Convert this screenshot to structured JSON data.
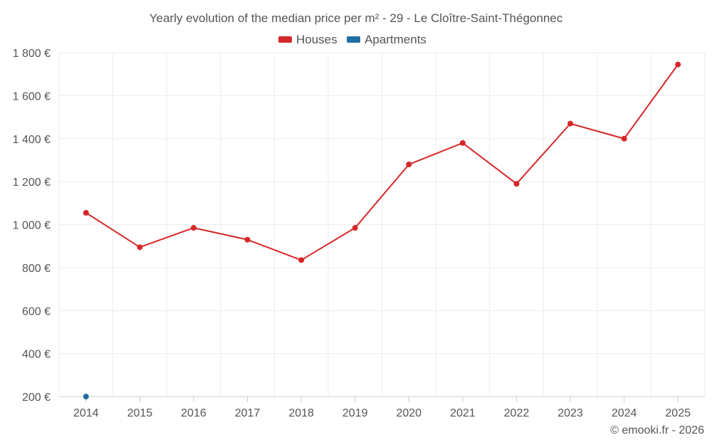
{
  "chart_data": {
    "type": "line",
    "title": "Yearly evolution of the median price per m² - 29 - Le Cloître-Saint-Thégonnec",
    "categories": [
      "2014",
      "2015",
      "2016",
      "2017",
      "2018",
      "2019",
      "2020",
      "2021",
      "2022",
      "2023",
      "2024",
      "2025"
    ],
    "series": [
      {
        "name": "Houses",
        "color": "#d62728",
        "values": [
          1055,
          895,
          985,
          930,
          835,
          985,
          1280,
          1380,
          1190,
          1470,
          1400,
          1745
        ]
      },
      {
        "name": "Apartments",
        "color": "#1f6fa3",
        "values": [
          200,
          null,
          null,
          null,
          null,
          null,
          null,
          null,
          null,
          null,
          null,
          null
        ]
      }
    ],
    "y_ticks": [
      200,
      400,
      600,
      800,
      1000,
      1200,
      1400,
      1600,
      1800
    ],
    "y_tick_labels": [
      "200 €",
      "400 €",
      "600 €",
      "800 €",
      "1 000 €",
      "1 200 €",
      "1 400 €",
      "1 600 €",
      "1 800 €"
    ],
    "ylim": [
      200,
      1800
    ],
    "xlabel": "",
    "ylabel": "",
    "legend_position": "top-center",
    "grid": true
  },
  "credit": "© emooki.fr - 2026"
}
